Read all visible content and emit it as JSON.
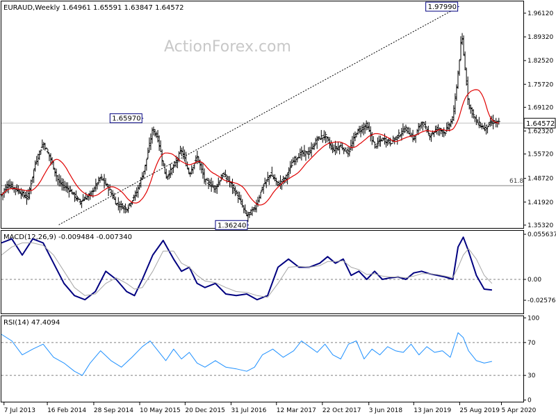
{
  "watermark": "ActionForex.com",
  "chart_data": [
    {
      "type": "ohlc",
      "header": "EURAUD,Weekly  1.64961 1.65591 1.63847 1.64572",
      "symbol": "EURAUD",
      "timeframe": "Weekly",
      "ohlc_last": {
        "open": 1.64961,
        "high": 1.65591,
        "low": 1.63847,
        "close": 1.64572
      },
      "price_axis_ticks": [
        "1.96120",
        "1.89320",
        "1.82520",
        "1.75720",
        "1.69120",
        "1.62320",
        "1.55720",
        "1.48720",
        "1.41920",
        "1.35320"
      ],
      "ylim": [
        1.345,
        1.995
      ],
      "current_price_label": "1.64572",
      "horizontal_lines": [
        {
          "value": 1.6457,
          "color": "#bfbfbf"
        },
        {
          "value": 1.4665,
          "color": "#808080",
          "label": "61.8"
        }
      ],
      "annotations": [
        {
          "label": "1.65970",
          "x": 0.272,
          "value": 1.6597
        },
        {
          "label": "1.97990",
          "x": 0.877,
          "value": 1.9799
        },
        {
          "label": "1.36240",
          "x": 0.474,
          "value": 1.3624
        }
      ],
      "trendline": {
        "from": {
          "x": 0.11,
          "value": 1.354
        },
        "to": {
          "x": 0.877,
          "value": 1.9799
        },
        "style": "dotted"
      },
      "moving_average": {
        "color": "#e00000"
      },
      "price_path": [
        [
          0.0,
          1.44
        ],
        [
          0.012,
          1.47
        ],
        [
          0.03,
          1.455
        ],
        [
          0.05,
          1.43
        ],
        [
          0.065,
          1.53
        ],
        [
          0.08,
          1.59
        ],
        [
          0.095,
          1.54
        ],
        [
          0.11,
          1.475
        ],
        [
          0.13,
          1.455
        ],
        [
          0.15,
          1.42
        ],
        [
          0.17,
          1.44
        ],
        [
          0.19,
          1.49
        ],
        [
          0.205,
          1.46
        ],
        [
          0.22,
          1.415
        ],
        [
          0.24,
          1.4
        ],
        [
          0.26,
          1.45
        ],
        [
          0.275,
          1.52
        ],
        [
          0.29,
          1.63
        ],
        [
          0.3,
          1.6
        ],
        [
          0.315,
          1.49
        ],
        [
          0.33,
          1.52
        ],
        [
          0.345,
          1.57
        ],
        [
          0.36,
          1.5
        ],
        [
          0.375,
          1.55
        ],
        [
          0.39,
          1.48
        ],
        [
          0.41,
          1.46
        ],
        [
          0.425,
          1.5
        ],
        [
          0.44,
          1.47
        ],
        [
          0.455,
          1.43
        ],
        [
          0.47,
          1.38
        ],
        [
          0.485,
          1.4
        ],
        [
          0.5,
          1.46
        ],
        [
          0.515,
          1.5
        ],
        [
          0.53,
          1.47
        ],
        [
          0.545,
          1.49
        ],
        [
          0.56,
          1.54
        ],
        [
          0.575,
          1.56
        ],
        [
          0.59,
          1.56
        ],
        [
          0.605,
          1.6
        ],
        [
          0.62,
          1.61
        ],
        [
          0.635,
          1.57
        ],
        [
          0.65,
          1.58
        ],
        [
          0.665,
          1.56
        ],
        [
          0.68,
          1.62
        ],
        [
          0.7,
          1.64
        ],
        [
          0.715,
          1.58
        ],
        [
          0.73,
          1.6
        ],
        [
          0.745,
          1.59
        ],
        [
          0.76,
          1.61
        ],
        [
          0.775,
          1.63
        ],
        [
          0.79,
          1.6
        ],
        [
          0.805,
          1.65
        ],
        [
          0.82,
          1.61
        ],
        [
          0.835,
          1.63
        ],
        [
          0.85,
          1.62
        ],
        [
          0.865,
          1.66
        ],
        [
          0.875,
          1.79
        ],
        [
          0.882,
          1.9
        ],
        [
          0.895,
          1.7
        ],
        [
          0.91,
          1.65
        ],
        [
          0.925,
          1.63
        ],
        [
          0.94,
          1.65
        ],
        [
          0.955,
          1.645
        ]
      ]
    },
    {
      "type": "line",
      "header": "MACD(12,26,9) -0.009484 -0.007340",
      "axis_ticks": [
        {
          "label": "0.055637",
          "value": 0.055637
        },
        {
          "label": "0.00",
          "value": 0.0
        },
        {
          "label": "-0.02576",
          "value": -0.02576
        }
      ],
      "ylim": [
        -0.042,
        0.06
      ],
      "series": [
        {
          "color": "#000080",
          "path": [
            [
              0.0,
              0.045
            ],
            [
              0.02,
              0.05
            ],
            [
              0.04,
              0.03
            ],
            [
              0.06,
              0.05
            ],
            [
              0.08,
              0.045
            ],
            [
              0.1,
              0.02
            ],
            [
              0.12,
              -0.005
            ],
            [
              0.14,
              -0.02
            ],
            [
              0.16,
              -0.025
            ],
            [
              0.18,
              -0.015
            ],
            [
              0.2,
              0.01
            ],
            [
              0.22,
              0.0
            ],
            [
              0.24,
              -0.015
            ],
            [
              0.255,
              -0.02
            ],
            [
              0.27,
              0.0
            ],
            [
              0.29,
              0.03
            ],
            [
              0.31,
              0.048
            ],
            [
              0.33,
              0.025
            ],
            [
              0.345,
              0.01
            ],
            [
              0.36,
              0.015
            ],
            [
              0.375,
              -0.005
            ],
            [
              0.39,
              -0.01
            ],
            [
              0.41,
              -0.005
            ],
            [
              0.43,
              -0.018
            ],
            [
              0.45,
              -0.02
            ],
            [
              0.47,
              -0.018
            ],
            [
              0.49,
              -0.025
            ],
            [
              0.51,
              -0.02
            ],
            [
              0.53,
              0.015
            ],
            [
              0.55,
              0.025
            ],
            [
              0.57,
              0.015
            ],
            [
              0.59,
              0.015
            ],
            [
              0.61,
              0.02
            ],
            [
              0.625,
              0.028
            ],
            [
              0.64,
              0.02
            ],
            [
              0.655,
              0.025
            ],
            [
              0.67,
              0.005
            ],
            [
              0.685,
              0.01
            ],
            [
              0.7,
              0.0
            ],
            [
              0.715,
              0.01
            ],
            [
              0.73,
              0.0
            ],
            [
              0.745,
              0.002
            ],
            [
              0.76,
              0.003
            ],
            [
              0.775,
              0.0
            ],
            [
              0.79,
              0.008
            ],
            [
              0.805,
              0.01
            ],
            [
              0.82,
              0.007
            ],
            [
              0.835,
              0.005
            ],
            [
              0.85,
              0.003
            ],
            [
              0.865,
              0.0
            ],
            [
              0.875,
              0.04
            ],
            [
              0.885,
              0.052
            ],
            [
              0.895,
              0.035
            ],
            [
              0.91,
              0.005
            ],
            [
              0.925,
              -0.012
            ],
            [
              0.94,
              -0.013
            ]
          ]
        },
        {
          "color": "#a6a6a6",
          "path": [
            [
              0.0,
              0.03
            ],
            [
              0.02,
              0.04
            ],
            [
              0.04,
              0.045
            ],
            [
              0.06,
              0.045
            ],
            [
              0.08,
              0.042
            ],
            [
              0.1,
              0.03
            ],
            [
              0.12,
              0.01
            ],
            [
              0.14,
              -0.01
            ],
            [
              0.16,
              -0.02
            ],
            [
              0.18,
              -0.018
            ],
            [
              0.2,
              -0.005
            ],
            [
              0.22,
              0.002
            ],
            [
              0.24,
              -0.005
            ],
            [
              0.255,
              -0.012
            ],
            [
              0.27,
              -0.01
            ],
            [
              0.29,
              0.01
            ],
            [
              0.31,
              0.035
            ],
            [
              0.33,
              0.035
            ],
            [
              0.345,
              0.02
            ],
            [
              0.36,
              0.015
            ],
            [
              0.375,
              0.005
            ],
            [
              0.39,
              -0.002
            ],
            [
              0.41,
              -0.004
            ],
            [
              0.43,
              -0.01
            ],
            [
              0.45,
              -0.015
            ],
            [
              0.47,
              -0.016
            ],
            [
              0.49,
              -0.02
            ],
            [
              0.51,
              -0.022
            ],
            [
              0.53,
              -0.005
            ],
            [
              0.55,
              0.015
            ],
            [
              0.57,
              0.016
            ],
            [
              0.59,
              0.015
            ],
            [
              0.61,
              0.017
            ],
            [
              0.625,
              0.022
            ],
            [
              0.64,
              0.022
            ],
            [
              0.655,
              0.023
            ],
            [
              0.67,
              0.015
            ],
            [
              0.685,
              0.012
            ],
            [
              0.7,
              0.006
            ],
            [
              0.715,
              0.007
            ],
            [
              0.73,
              0.004
            ],
            [
              0.745,
              0.003
            ],
            [
              0.76,
              0.003
            ],
            [
              0.775,
              0.002
            ],
            [
              0.79,
              0.004
            ],
            [
              0.805,
              0.007
            ],
            [
              0.82,
              0.007
            ],
            [
              0.835,
              0.006
            ],
            [
              0.85,
              0.004
            ],
            [
              0.865,
              0.002
            ],
            [
              0.875,
              0.015
            ],
            [
              0.885,
              0.03
            ],
            [
              0.895,
              0.038
            ],
            [
              0.91,
              0.025
            ],
            [
              0.925,
              0.005
            ],
            [
              0.94,
              -0.005
            ]
          ]
        }
      ]
    },
    {
      "type": "line",
      "header": "RSI(14) 47.4094",
      "axis_ticks": [
        {
          "label": "100",
          "value": 100
        },
        {
          "label": "70",
          "value": 70
        },
        {
          "label": "30",
          "value": 30
        },
        {
          "label": "0",
          "value": 0
        }
      ],
      "levels": [
        70,
        30
      ],
      "ylim": [
        -2,
        102
      ],
      "series": [
        {
          "color": "#1e90ff",
          "path": [
            [
              0.0,
              80
            ],
            [
              0.02,
              72
            ],
            [
              0.04,
              55
            ],
            [
              0.06,
              62
            ],
            [
              0.08,
              68
            ],
            [
              0.1,
              52
            ],
            [
              0.12,
              45
            ],
            [
              0.14,
              35
            ],
            [
              0.155,
              30
            ],
            [
              0.17,
              45
            ],
            [
              0.19,
              60
            ],
            [
              0.21,
              48
            ],
            [
              0.23,
              40
            ],
            [
              0.25,
              52
            ],
            [
              0.27,
              65
            ],
            [
              0.285,
              72
            ],
            [
              0.3,
              60
            ],
            [
              0.315,
              48
            ],
            [
              0.33,
              62
            ],
            [
              0.345,
              50
            ],
            [
              0.36,
              58
            ],
            [
              0.375,
              45
            ],
            [
              0.39,
              40
            ],
            [
              0.41,
              48
            ],
            [
              0.43,
              40
            ],
            [
              0.45,
              38
            ],
            [
              0.47,
              35
            ],
            [
              0.485,
              40
            ],
            [
              0.5,
              55
            ],
            [
              0.52,
              62
            ],
            [
              0.54,
              52
            ],
            [
              0.56,
              60
            ],
            [
              0.575,
              72
            ],
            [
              0.59,
              65
            ],
            [
              0.605,
              58
            ],
            [
              0.62,
              68
            ],
            [
              0.635,
              55
            ],
            [
              0.65,
              50
            ],
            [
              0.665,
              68
            ],
            [
              0.68,
              72
            ],
            [
              0.695,
              50
            ],
            [
              0.71,
              62
            ],
            [
              0.725,
              55
            ],
            [
              0.74,
              65
            ],
            [
              0.755,
              60
            ],
            [
              0.77,
              58
            ],
            [
              0.785,
              68
            ],
            [
              0.8,
              55
            ],
            [
              0.815,
              65
            ],
            [
              0.83,
              58
            ],
            [
              0.845,
              60
            ],
            [
              0.86,
              52
            ],
            [
              0.875,
              82
            ],
            [
              0.885,
              76
            ],
            [
              0.895,
              60
            ],
            [
              0.91,
              48
            ],
            [
              0.925,
              45
            ],
            [
              0.94,
              47
            ]
          ]
        }
      ]
    }
  ],
  "x_axis_labels": [
    {
      "label": "7 Jul 2013",
      "x": 0.005
    },
    {
      "label": "16 Feb 2014",
      "x": 0.088
    },
    {
      "label": "28 Sep 2014",
      "x": 0.177
    },
    {
      "label": "10 May 2015",
      "x": 0.265
    },
    {
      "label": "20 Dec 2015",
      "x": 0.352
    },
    {
      "label": "31 Jul 2016",
      "x": 0.44
    },
    {
      "label": "12 Mar 2017",
      "x": 0.527
    },
    {
      "label": "22 Oct 2017",
      "x": 0.615
    },
    {
      "label": "3 Jun 2018",
      "x": 0.704
    },
    {
      "label": "13 Jan 2019",
      "x": 0.79
    },
    {
      "label": "25 Aug 2019",
      "x": 0.878
    },
    {
      "label": "5 Apr 2020",
      "x": 0.958
    }
  ]
}
